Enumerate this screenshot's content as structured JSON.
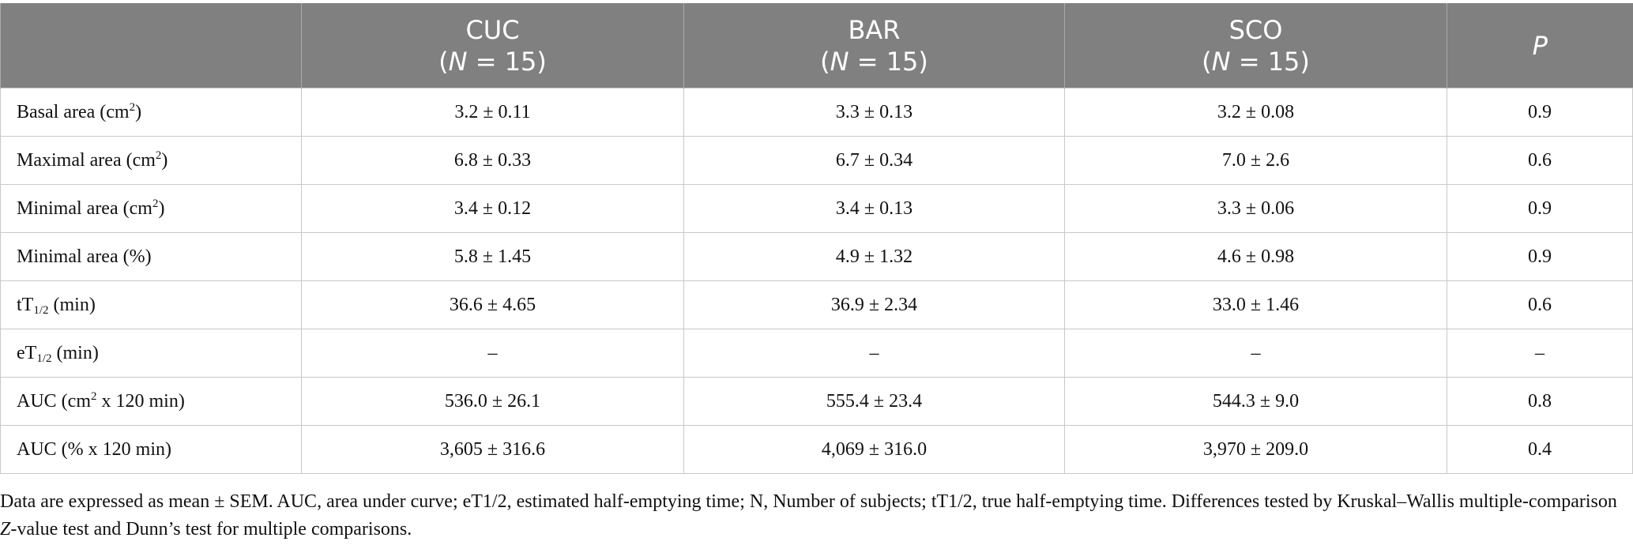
{
  "table": {
    "header": [
      [],
      [
        [
          {
            "t": "CUC"
          }
        ],
        [
          {
            "t": "("
          },
          {
            "i": "N"
          },
          {
            "t": " = 15)"
          }
        ]
      ],
      [
        [
          {
            "t": "BAR"
          }
        ],
        [
          {
            "t": "("
          },
          {
            "i": "N"
          },
          {
            "t": " = 15)"
          }
        ]
      ],
      [
        [
          {
            "t": "SCO"
          }
        ],
        [
          {
            "t": "("
          },
          {
            "i": "N"
          },
          {
            "t": " = 15)"
          }
        ]
      ],
      [
        [
          {
            "i": "P"
          }
        ]
      ]
    ],
    "rows": [
      {
        "label": [
          {
            "t": "Basal area (cm"
          },
          {
            "sup": "2"
          },
          {
            "t": ")"
          }
        ],
        "cells": [
          "3.2 ± 0.11",
          "3.3 ± 0.13",
          "3.2 ± 0.08",
          "0.9"
        ]
      },
      {
        "label": [
          {
            "t": "Maximal area (cm"
          },
          {
            "sup": "2"
          },
          {
            "t": ")"
          }
        ],
        "cells": [
          "6.8 ± 0.33",
          "6.7 ± 0.34",
          "7.0 ± 2.6",
          "0.6"
        ]
      },
      {
        "label": [
          {
            "t": "Minimal area (cm"
          },
          {
            "sup": "2"
          },
          {
            "t": ")"
          }
        ],
        "cells": [
          "3.4 ± 0.12",
          "3.4 ± 0.13",
          "3.3 ± 0.06",
          "0.9"
        ]
      },
      {
        "label": [
          {
            "t": "Minimal area (%)"
          }
        ],
        "cells": [
          "5.8 ± 1.45",
          "4.9 ± 1.32",
          "4.6 ± 0.98",
          "0.9"
        ]
      },
      {
        "label": [
          {
            "t": "tT"
          },
          {
            "sub": "1/2"
          },
          {
            "t": " (min)"
          }
        ],
        "cells": [
          "36.6 ± 4.65",
          "36.9 ± 2.34",
          "33.0 ± 1.46",
          "0.6"
        ]
      },
      {
        "label": [
          {
            "t": "eT"
          },
          {
            "sub": "1/2"
          },
          {
            "t": " (min)"
          }
        ],
        "cells": [
          "–",
          "–",
          "–",
          "–"
        ]
      },
      {
        "label": [
          {
            "t": "AUC (cm"
          },
          {
            "sup": "2"
          },
          {
            "t": " x 120 min)"
          }
        ],
        "cells": [
          "536.0 ± 26.1",
          "555.4 ± 23.4",
          "544.3 ± 9.0",
          "0.8"
        ]
      },
      {
        "label": [
          {
            "t": "AUC (% x 120 min)"
          }
        ],
        "cells": [
          "3,605 ± 316.6",
          "4,069 ± 316.0",
          "3,970 ± 209.0",
          "0.4"
        ]
      }
    ]
  },
  "footnote": [
    {
      "t": "Data are expressed as mean ± SEM. AUC, area under curve; eT1/2, estimated half-emptying time; N, Number of subjects; tT1/2, true half-emptying time. Differences tested by Kruskal–Wallis multiple-comparison "
    },
    {
      "i": "Z"
    },
    {
      "t": "-value test and Dunn’s test for multiple comparisons."
    }
  ]
}
